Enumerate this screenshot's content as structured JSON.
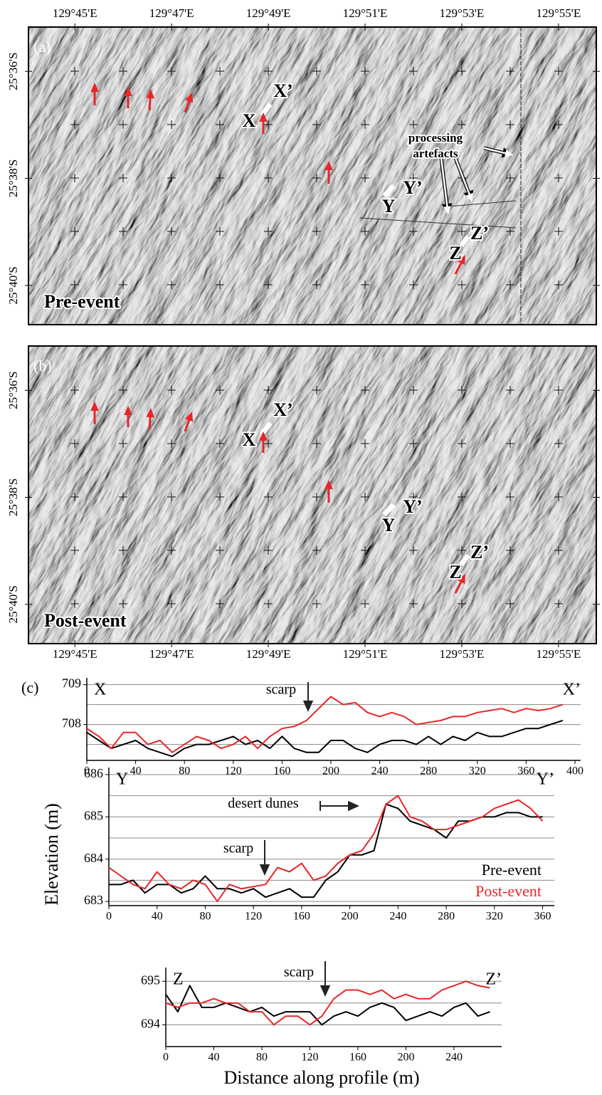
{
  "maps": [
    {
      "panel_label": "(a)",
      "caption": "Pre-event",
      "xlim": [
        129.734,
        129.9297
      ],
      "ylim": [
        -25.6789,
        -25.5862
      ],
      "xticks": [
        {
          "value": 129.75,
          "label": "129°45'E"
        },
        {
          "value": 129.78333,
          "label": "129°47'E"
        },
        {
          "value": 129.81667,
          "label": "129°49'E"
        },
        {
          "value": 129.85,
          "label": "129°51'E"
        },
        {
          "value": 129.88333,
          "label": "129°53'E"
        },
        {
          "value": 129.91667,
          "label": "129°55'E"
        }
      ],
      "yticks": [
        {
          "value": -25.6,
          "label": "25°36'S"
        },
        {
          "value": -25.63333,
          "label": "25°38'S"
        },
        {
          "value": -25.66667,
          "label": "25°40'S"
        }
      ],
      "annotations": [
        "X",
        "X’",
        "Y",
        "Y’",
        "Z",
        "Z’",
        "processing",
        "artefacts"
      ]
    },
    {
      "panel_label": "(b)",
      "caption": "Post-event",
      "xlim": [
        129.734,
        129.9297
      ],
      "ylim": [
        -25.6789,
        -25.5862
      ],
      "xticks": [
        {
          "value": 129.75,
          "label": "129°45'E"
        },
        {
          "value": 129.78333,
          "label": "129°47'E"
        },
        {
          "value": 129.81667,
          "label": "129°49'E"
        },
        {
          "value": 129.85,
          "label": "129°51'E"
        },
        {
          "value": 129.88333,
          "label": "129°53'E"
        },
        {
          "value": 129.91667,
          "label": "129°55'E"
        }
      ],
      "yticks": [
        {
          "value": -25.6,
          "label": "25°36'S"
        },
        {
          "value": -25.63333,
          "label": "25°38'S"
        },
        {
          "value": -25.66667,
          "label": "25°40'S"
        }
      ],
      "annotations": [
        "X",
        "X’",
        "Y",
        "Y’",
        "Z",
        "Z’"
      ]
    }
  ],
  "profiles": {
    "panel_label": "(c)",
    "ylabel": "Elevation (m)",
    "xlabel": "Distance along profile (m)"
  },
  "chart_data": [
    {
      "type": "line",
      "label_left": "X",
      "label_right": "X’",
      "annotations": [
        "scarp"
      ],
      "x": [
        0,
        10,
        20,
        30,
        40,
        50,
        60,
        70,
        80,
        90,
        100,
        110,
        120,
        130,
        140,
        150,
        160,
        170,
        180,
        190,
        200,
        210,
        220,
        230,
        240,
        250,
        260,
        270,
        280,
        290,
        300,
        310,
        320,
        330,
        340,
        350,
        360,
        370,
        380,
        390
      ],
      "series": [
        {
          "color": "#000000",
          "values": [
            707.8,
            707.6,
            707.4,
            707.5,
            707.6,
            707.4,
            707.3,
            707.2,
            707.4,
            707.5,
            707.5,
            707.6,
            707.7,
            707.5,
            707.6,
            707.4,
            707.7,
            707.4,
            707.3,
            707.3,
            707.6,
            707.6,
            707.4,
            707.3,
            707.5,
            707.6,
            707.6,
            707.5,
            707.7,
            707.5,
            707.7,
            707.6,
            707.8,
            707.7,
            707.7,
            707.8,
            707.9,
            707.9,
            708.0,
            708.1
          ]
        },
        {
          "color": "#e8262a",
          "values": [
            707.9,
            707.7,
            707.4,
            707.8,
            707.8,
            707.5,
            707.6,
            707.3,
            707.5,
            707.7,
            707.6,
            707.4,
            707.5,
            707.7,
            707.4,
            707.7,
            707.9,
            707.95,
            708.1,
            708.4,
            708.7,
            708.5,
            708.55,
            708.3,
            708.2,
            708.3,
            708.2,
            708.0,
            708.05,
            708.1,
            708.2,
            708.2,
            708.3,
            708.35,
            708.4,
            708.3,
            708.4,
            708.35,
            708.4,
            708.5
          ]
        }
      ],
      "xlim": [
        0,
        400
      ],
      "ylim": [
        707.1,
        709.1
      ],
      "xticks": [
        0,
        40,
        80,
        120,
        160,
        200,
        240,
        280,
        320,
        360,
        400
      ],
      "yticks": [
        708,
        709
      ],
      "gridlines": [
        707.5,
        708,
        708.5,
        709
      ]
    },
    {
      "type": "line",
      "label_left": "Y",
      "label_right": "Y’",
      "annotations": [
        "desert dunes",
        "scarp"
      ],
      "x": [
        0,
        10,
        20,
        30,
        40,
        50,
        60,
        70,
        80,
        90,
        100,
        110,
        120,
        130,
        140,
        150,
        160,
        170,
        180,
        190,
        200,
        210,
        220,
        230,
        240,
        250,
        260,
        270,
        280,
        290,
        300,
        310,
        320,
        330,
        340,
        350,
        360
      ],
      "series": [
        {
          "name": "Pre-event",
          "color": "#000000",
          "values": [
            683.4,
            683.4,
            683.5,
            683.2,
            683.4,
            683.4,
            683.2,
            683.3,
            683.6,
            683.3,
            683.3,
            683.2,
            683.3,
            683.1,
            683.2,
            683.3,
            683.1,
            683.1,
            683.5,
            683.7,
            684.1,
            684.1,
            684.2,
            685.3,
            685.2,
            684.9,
            684.8,
            684.7,
            684.5,
            684.9,
            684.9,
            685.0,
            685.0,
            685.1,
            685.1,
            685.0,
            685.0
          ]
        },
        {
          "name": "Post-event",
          "color": "#e8262a",
          "values": [
            683.8,
            683.6,
            683.4,
            683.3,
            683.7,
            683.4,
            683.3,
            683.5,
            683.4,
            683.0,
            683.4,
            683.3,
            683.35,
            683.4,
            683.8,
            683.7,
            683.9,
            683.5,
            683.6,
            683.9,
            684.1,
            684.2,
            684.6,
            685.3,
            685.5,
            685.0,
            684.9,
            684.7,
            684.7,
            684.8,
            684.9,
            685.0,
            685.2,
            685.3,
            685.4,
            685.2,
            684.9
          ]
        }
      ],
      "xlim": [
        0,
        365
      ],
      "ylim": [
        682.9,
        686.1
      ],
      "xticks": [
        0,
        40,
        80,
        120,
        160,
        200,
        240,
        280,
        320,
        360
      ],
      "yticks": [
        683,
        684,
        685,
        686
      ],
      "gridlines": [
        683,
        683.5,
        684,
        684.5,
        685,
        685.5,
        686
      ],
      "legend": "lower right"
    },
    {
      "type": "line",
      "label_left": "Z",
      "label_right": "Z’",
      "annotations": [
        "scarp"
      ],
      "x": [
        0,
        10,
        20,
        30,
        40,
        50,
        60,
        70,
        80,
        90,
        100,
        110,
        120,
        130,
        140,
        150,
        160,
        170,
        180,
        190,
        200,
        210,
        220,
        230,
        240,
        250,
        260,
        270
      ],
      "series": [
        {
          "color": "#000000",
          "values": [
            694.7,
            694.3,
            694.9,
            694.4,
            694.4,
            694.5,
            694.4,
            694.3,
            694.4,
            694.2,
            694.3,
            694.3,
            694.3,
            694.0,
            694.2,
            694.3,
            694.2,
            694.4,
            694.5,
            694.4,
            694.1,
            694.2,
            694.3,
            694.2,
            694.4,
            694.5,
            694.2,
            694.3
          ]
        },
        {
          "color": "#e8262a",
          "values": [
            694.5,
            694.4,
            694.5,
            694.5,
            694.6,
            694.5,
            694.5,
            694.3,
            694.3,
            694.0,
            694.2,
            694.2,
            694.0,
            694.2,
            694.6,
            694.8,
            694.8,
            694.7,
            694.8,
            694.6,
            694.7,
            694.6,
            694.6,
            694.8,
            694.9,
            695.0,
            694.9,
            694.85
          ]
        }
      ],
      "xlim": [
        0,
        275
      ],
      "ylim": [
        693.5,
        695.25
      ],
      "xticks": [
        0,
        40,
        80,
        120,
        160,
        200,
        240
      ],
      "yticks": [
        694,
        695
      ],
      "gridlines": [
        694,
        694.5,
        695
      ]
    }
  ]
}
